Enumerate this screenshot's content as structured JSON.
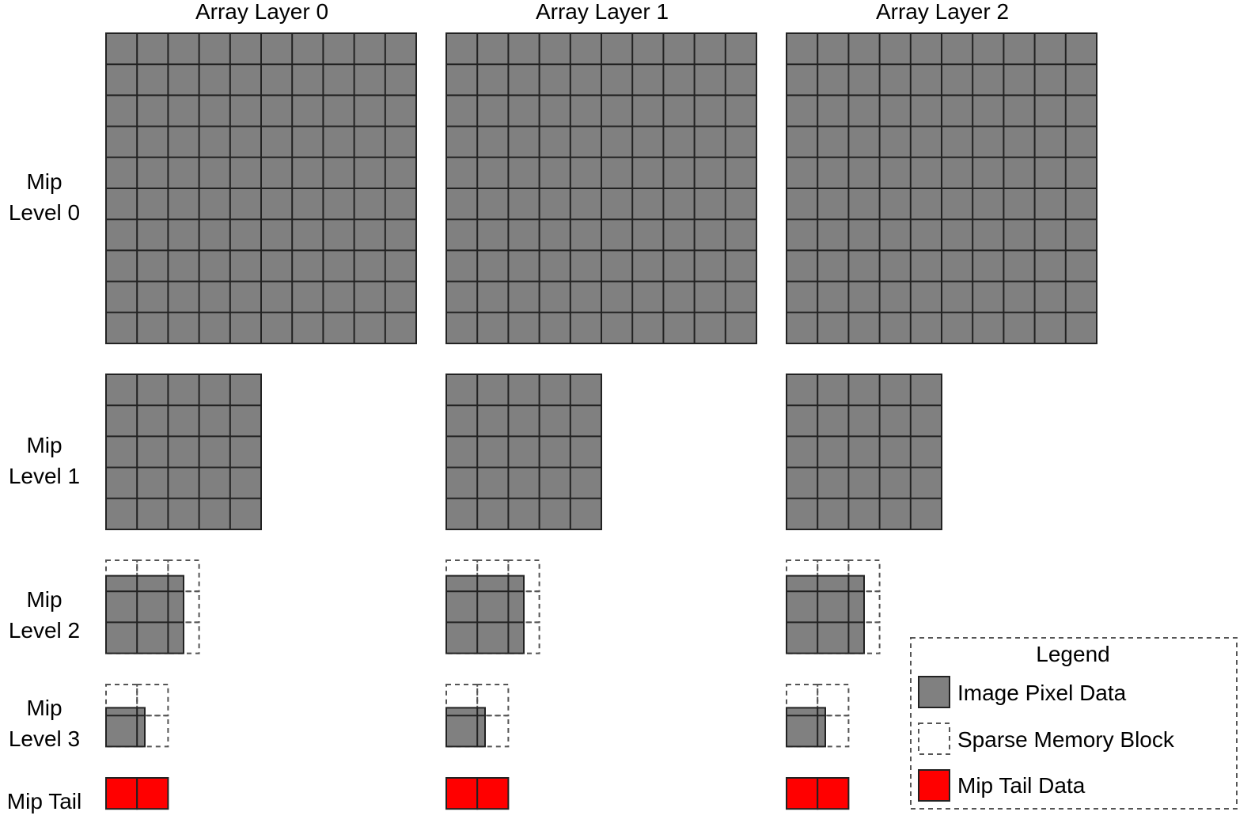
{
  "column_headers": [
    "Array Layer 0",
    "Array Layer 1",
    "Array Layer 2"
  ],
  "row_labels": [
    [
      "Mip",
      "Level 0"
    ],
    [
      "Mip",
      "Level 1"
    ],
    [
      "Mip",
      "Level 2"
    ],
    [
      "Mip",
      "Level 3"
    ],
    [
      "Mip Tail"
    ]
  ],
  "mip_levels": [
    {
      "grid": 10,
      "sparse_grid": 0
    },
    {
      "grid": 5,
      "sparse_grid": 0
    },
    {
      "grid": 2.5,
      "sparse_grid": 3
    },
    {
      "grid": 1.25,
      "sparse_grid": 2
    }
  ],
  "mip_tail_blocks": 2,
  "legend": {
    "title": "Legend",
    "items": [
      {
        "key": "image-pixel-data",
        "label": "Image Pixel Data"
      },
      {
        "key": "sparse-memory-block",
        "label": "Sparse Memory Block"
      },
      {
        "key": "mip-tail-data",
        "label": "Mip Tail Data"
      }
    ]
  },
  "colors": {
    "pixel_fill": "#808080",
    "mip_tail_fill": "#ff0000",
    "stroke": "#222222",
    "sparse_stroke": "#555555"
  }
}
